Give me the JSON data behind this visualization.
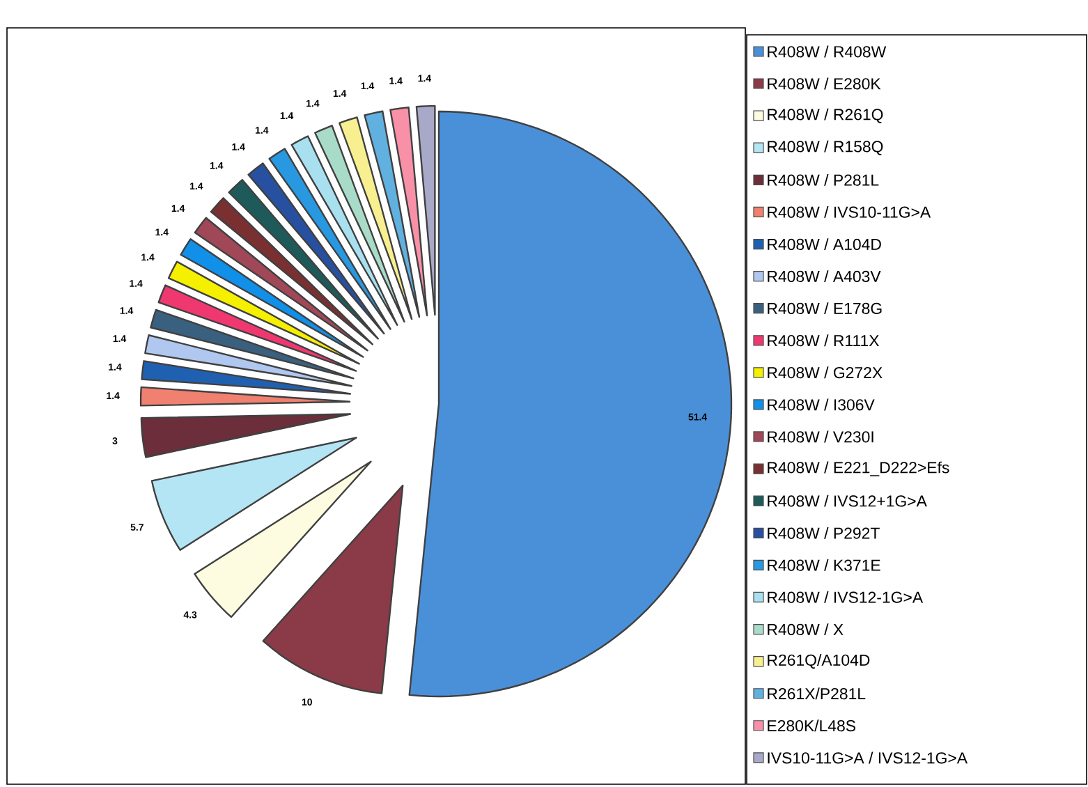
{
  "chart_data": {
    "type": "pie",
    "categories": [
      "R408W / R408W",
      "R408W / E280K",
      "R408W / R261Q",
      "R408W / R158Q",
      "R408W / P281L",
      "R408W / IVS10-11G>A",
      "R408W / A104D",
      "R408W / A403V",
      "R408W / E178G",
      "R408W / R111X",
      "R408W / G272X",
      "R408W / I306V",
      "R408W / V230I",
      "R408W / E221_D222>Efs",
      "R408W / IVS12+1G>A",
      "R408W / P292T",
      "R408W / K371E",
      "R408W / IVS12-1G>A",
      "R408W / X",
      "R261Q/A104D",
      "R261X/P281L",
      "E280K/L48S",
      "IVS10-11G>A / IVS12-1G>A"
    ],
    "values": [
      51.4,
      10,
      4.3,
      5.7,
      3,
      1.4,
      1.4,
      1.4,
      1.4,
      1.4,
      1.4,
      1.4,
      1.4,
      1.4,
      1.4,
      1.4,
      1.4,
      1.4,
      1.4,
      1.4,
      1.4,
      1.4,
      1.4
    ],
    "colors": [
      "#4a90d9",
      "#8b3a48",
      "#fdfbe0",
      "#b3e5f5",
      "#6b2e3a",
      "#f08070",
      "#2060b0",
      "#b0c8f0",
      "#3a6080",
      "#f03870",
      "#f5f000",
      "#1090e8",
      "#a04858",
      "#7a3030",
      "#1e5a5a",
      "#2850a0",
      "#2898e0",
      "#a8e0f0",
      "#a8dcc8",
      "#f8f090",
      "#60b0e0",
      "#f890a8",
      "#a8a8c8"
    ],
    "data_labels": true,
    "legend": "right"
  }
}
